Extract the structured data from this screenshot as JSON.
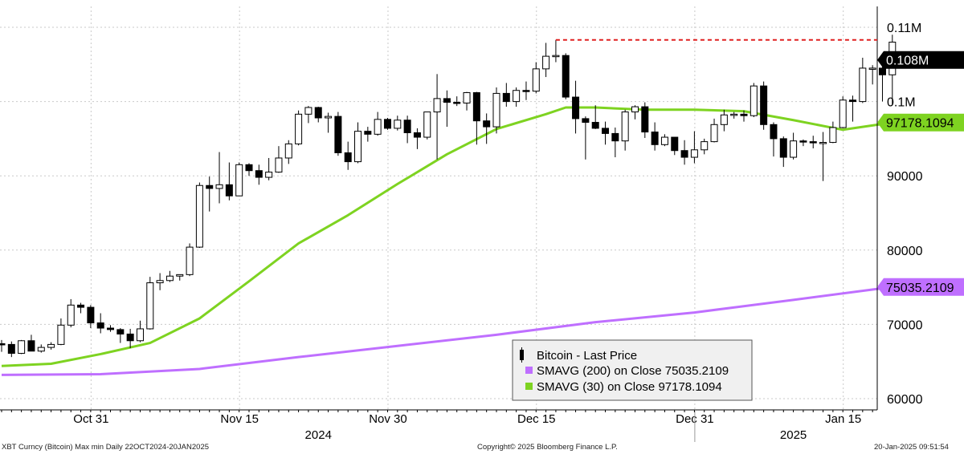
{
  "chart_data": {
    "type": "candlestick",
    "x_ticks": [
      "Oct 31",
      "Nov 15",
      "Nov 30",
      "Dec 15",
      "Dec 31",
      "Jan 15"
    ],
    "x_years": [
      "2024",
      "2025"
    ],
    "y_ticks": [
      "60000",
      "70000",
      "80000",
      "90000",
      "0.1M",
      "0.11M"
    ],
    "ylim": [
      59000,
      112000
    ],
    "grid": true,
    "legend_position": "bottom-center",
    "candles": [
      {
        "date": "2024-10-22",
        "o": 67400,
        "h": 67900,
        "l": 66300,
        "c": 67300
      },
      {
        "date": "2024-10-23",
        "o": 67300,
        "h": 67700,
        "l": 65600,
        "c": 66100
      },
      {
        "date": "2024-10-24",
        "o": 66100,
        "h": 67900,
        "l": 66000,
        "c": 67800
      },
      {
        "date": "2024-10-25",
        "o": 67800,
        "h": 68600,
        "l": 66500,
        "c": 66400
      },
      {
        "date": "2024-10-26",
        "o": 66400,
        "h": 67300,
        "l": 66200,
        "c": 66900
      },
      {
        "date": "2024-10-27",
        "o": 66900,
        "h": 67600,
        "l": 66600,
        "c": 67300
      },
      {
        "date": "2024-10-28",
        "o": 67300,
        "h": 70800,
        "l": 67200,
        "c": 69900
      },
      {
        "date": "2024-10-29",
        "o": 69900,
        "h": 73400,
        "l": 69600,
        "c": 72600
      },
      {
        "date": "2024-10-30",
        "o": 72600,
        "h": 72900,
        "l": 71500,
        "c": 72300
      },
      {
        "date": "2024-10-31",
        "o": 72300,
        "h": 72600,
        "l": 69500,
        "c": 70200
      },
      {
        "date": "2024-11-01",
        "o": 70200,
        "h": 71500,
        "l": 68800,
        "c": 69500
      },
      {
        "date": "2024-11-02",
        "o": 69500,
        "h": 69900,
        "l": 69000,
        "c": 69300
      },
      {
        "date": "2024-11-03",
        "o": 69300,
        "h": 69500,
        "l": 67500,
        "c": 68700
      },
      {
        "date": "2024-11-04",
        "o": 68700,
        "h": 69400,
        "l": 66800,
        "c": 67800
      },
      {
        "date": "2024-11-05",
        "o": 67800,
        "h": 70500,
        "l": 67600,
        "c": 69400
      },
      {
        "date": "2024-11-06",
        "o": 69400,
        "h": 76400,
        "l": 69300,
        "c": 75600
      },
      {
        "date": "2024-11-07",
        "o": 75600,
        "h": 76900,
        "l": 74600,
        "c": 75900
      },
      {
        "date": "2024-11-08",
        "o": 75900,
        "h": 77200,
        "l": 75700,
        "c": 76500
      },
      {
        "date": "2024-11-09",
        "o": 76500,
        "h": 76700,
        "l": 75900,
        "c": 76700
      },
      {
        "date": "2024-11-10",
        "o": 76700,
        "h": 80900,
        "l": 76500,
        "c": 80400
      },
      {
        "date": "2024-11-11",
        "o": 80400,
        "h": 89100,
        "l": 80300,
        "c": 88700
      },
      {
        "date": "2024-11-12",
        "o": 88700,
        "h": 89900,
        "l": 85200,
        "c": 88300
      },
      {
        "date": "2024-11-13",
        "o": 88300,
        "h": 93200,
        "l": 86300,
        "c": 88800
      },
      {
        "date": "2024-11-14",
        "o": 88800,
        "h": 91800,
        "l": 86700,
        "c": 87300
      },
      {
        "date": "2024-11-15",
        "o": 87300,
        "h": 91800,
        "l": 87300,
        "c": 91500
      },
      {
        "date": "2024-11-16",
        "o": 91500,
        "h": 91700,
        "l": 90000,
        "c": 90700
      },
      {
        "date": "2024-11-17",
        "o": 90700,
        "h": 91500,
        "l": 88800,
        "c": 89800
      },
      {
        "date": "2024-11-18",
        "o": 89800,
        "h": 92400,
        "l": 89400,
        "c": 90500
      },
      {
        "date": "2024-11-19",
        "o": 90500,
        "h": 94000,
        "l": 90400,
        "c": 92400
      },
      {
        "date": "2024-11-20",
        "o": 92400,
        "h": 94800,
        "l": 91600,
        "c": 94300
      },
      {
        "date": "2024-11-21",
        "o": 94300,
        "h": 98800,
        "l": 94100,
        "c": 98300
      },
      {
        "date": "2024-11-22",
        "o": 98300,
        "h": 99400,
        "l": 97100,
        "c": 99200
      },
      {
        "date": "2024-11-23",
        "o": 99200,
        "h": 99300,
        "l": 97200,
        "c": 97800
      },
      {
        "date": "2024-11-24",
        "o": 97800,
        "h": 98500,
        "l": 95800,
        "c": 98000
      },
      {
        "date": "2024-11-25",
        "o": 98000,
        "h": 98600,
        "l": 92700,
        "c": 93100
      },
      {
        "date": "2024-11-26",
        "o": 93100,
        "h": 94600,
        "l": 90800,
        "c": 91900
      },
      {
        "date": "2024-11-27",
        "o": 91900,
        "h": 97200,
        "l": 91700,
        "c": 96000
      },
      {
        "date": "2024-11-28",
        "o": 96000,
        "h": 96600,
        "l": 94600,
        "c": 95600
      },
      {
        "date": "2024-11-29",
        "o": 95600,
        "h": 98600,
        "l": 95400,
        "c": 97600
      },
      {
        "date": "2024-11-30",
        "o": 97600,
        "h": 97800,
        "l": 96200,
        "c": 96400
      },
      {
        "date": "2024-12-01",
        "o": 96400,
        "h": 98100,
        "l": 96100,
        "c": 97500
      },
      {
        "date": "2024-12-02",
        "o": 97500,
        "h": 98100,
        "l": 94400,
        "c": 95800
      },
      {
        "date": "2024-12-03",
        "o": 95800,
        "h": 96400,
        "l": 93600,
        "c": 95200
      },
      {
        "date": "2024-12-04",
        "o": 95200,
        "h": 98400,
        "l": 94900,
        "c": 98600
      },
      {
        "date": "2024-12-05",
        "o": 98600,
        "h": 103700,
        "l": 92200,
        "c": 100400
      },
      {
        "date": "2024-12-06",
        "o": 100400,
        "h": 101500,
        "l": 96600,
        "c": 99900
      },
      {
        "date": "2024-12-07",
        "o": 99900,
        "h": 100700,
        "l": 99400,
        "c": 99800
      },
      {
        "date": "2024-12-08",
        "o": 99800,
        "h": 101300,
        "l": 98800,
        "c": 101200
      },
      {
        "date": "2024-12-09",
        "o": 101200,
        "h": 101300,
        "l": 94200,
        "c": 97400
      },
      {
        "date": "2024-12-10",
        "o": 97400,
        "h": 98400,
        "l": 94300,
        "c": 96600
      },
      {
        "date": "2024-12-11",
        "o": 96600,
        "h": 101900,
        "l": 95700,
        "c": 101100
      },
      {
        "date": "2024-12-12",
        "o": 101100,
        "h": 102500,
        "l": 99300,
        "c": 100000
      },
      {
        "date": "2024-12-13",
        "o": 100000,
        "h": 101900,
        "l": 99300,
        "c": 101500
      },
      {
        "date": "2024-12-14",
        "o": 101500,
        "h": 102700,
        "l": 100200,
        "c": 101400
      },
      {
        "date": "2024-12-15",
        "o": 101400,
        "h": 105300,
        "l": 101100,
        "c": 104400
      },
      {
        "date": "2024-12-16",
        "o": 104400,
        "h": 107900,
        "l": 103300,
        "c": 106100
      },
      {
        "date": "2024-12-17",
        "o": 106100,
        "h": 108300,
        "l": 105300,
        "c": 106200
      },
      {
        "date": "2024-12-18",
        "o": 106200,
        "h": 106500,
        "l": 100300,
        "c": 100600
      },
      {
        "date": "2024-12-19",
        "o": 100600,
        "h": 102800,
        "l": 95700,
        "c": 97700
      },
      {
        "date": "2024-12-20",
        "o": 97700,
        "h": 98000,
        "l": 92200,
        "c": 97200
      },
      {
        "date": "2024-12-21",
        "o": 97200,
        "h": 99500,
        "l": 96300,
        "c": 96400
      },
      {
        "date": "2024-12-22",
        "o": 96400,
        "h": 97300,
        "l": 94200,
        "c": 95700
      },
      {
        "date": "2024-12-23",
        "o": 95700,
        "h": 96500,
        "l": 92500,
        "c": 94700
      },
      {
        "date": "2024-12-24",
        "o": 94700,
        "h": 98900,
        "l": 93400,
        "c": 98600
      },
      {
        "date": "2024-12-25",
        "o": 98600,
        "h": 99500,
        "l": 97600,
        "c": 99300
      },
      {
        "date": "2024-12-26",
        "o": 99300,
        "h": 99900,
        "l": 95100,
        "c": 95900
      },
      {
        "date": "2024-12-27",
        "o": 95900,
        "h": 97200,
        "l": 93400,
        "c": 94200
      },
      {
        "date": "2024-12-28",
        "o": 94200,
        "h": 95600,
        "l": 94000,
        "c": 95200
      },
      {
        "date": "2024-12-29",
        "o": 95200,
        "h": 95200,
        "l": 92800,
        "c": 93400
      },
      {
        "date": "2024-12-30",
        "o": 93400,
        "h": 94800,
        "l": 91500,
        "c": 92500
      },
      {
        "date": "2024-12-31",
        "o": 92500,
        "h": 96000,
        "l": 91700,
        "c": 93500
      },
      {
        "date": "2025-01-01",
        "o": 93500,
        "h": 95000,
        "l": 92900,
        "c": 94600
      },
      {
        "date": "2025-01-02",
        "o": 94600,
        "h": 97700,
        "l": 94500,
        "c": 96900
      },
      {
        "date": "2025-01-03",
        "o": 96900,
        "h": 98900,
        "l": 96000,
        "c": 98200
      },
      {
        "date": "2025-01-04",
        "o": 98200,
        "h": 98600,
        "l": 97700,
        "c": 98300
      },
      {
        "date": "2025-01-05",
        "o": 98300,
        "h": 98800,
        "l": 97300,
        "c": 98100
      },
      {
        "date": "2025-01-06",
        "o": 98100,
        "h": 102500,
        "l": 97900,
        "c": 102100
      },
      {
        "date": "2025-01-07",
        "o": 102100,
        "h": 102700,
        "l": 96200,
        "c": 96900
      },
      {
        "date": "2025-01-08",
        "o": 96900,
        "h": 97200,
        "l": 92600,
        "c": 95000
      },
      {
        "date": "2025-01-09",
        "o": 95000,
        "h": 95300,
        "l": 91200,
        "c": 92500
      },
      {
        "date": "2025-01-10",
        "o": 92500,
        "h": 95800,
        "l": 92200,
        "c": 94700
      },
      {
        "date": "2025-01-11",
        "o": 94700,
        "h": 94900,
        "l": 94000,
        "c": 94600
      },
      {
        "date": "2025-01-12",
        "o": 94600,
        "h": 95400,
        "l": 93700,
        "c": 94500
      },
      {
        "date": "2025-01-13",
        "o": 94500,
        "h": 95900,
        "l": 89300,
        "c": 94500
      },
      {
        "date": "2025-01-14",
        "o": 94500,
        "h": 97300,
        "l": 94400,
        "c": 96500
      },
      {
        "date": "2025-01-15",
        "o": 96500,
        "h": 100700,
        "l": 96400,
        "c": 100200
      },
      {
        "date": "2025-01-16",
        "o": 100200,
        "h": 100800,
        "l": 97300,
        "c": 100000
      },
      {
        "date": "2025-01-17",
        "o": 100000,
        "h": 105900,
        "l": 99800,
        "c": 104500
      },
      {
        "date": "2025-01-18",
        "o": 104500,
        "h": 104900,
        "l": 102300,
        "c": 104500
      },
      {
        "date": "2025-01-19",
        "o": 104500,
        "h": 106300,
        "l": 100000,
        "c": 103600
      },
      {
        "date": "2025-01-20",
        "o": 103600,
        "h": 109000,
        "l": 99600,
        "c": 108000
      }
    ],
    "series": [
      {
        "name": "SMAVG (200)  on Close",
        "last": "75035.2109",
        "color": "#bf6fff",
        "x": [
          "2024-10-22",
          "2024-11-01",
          "2024-11-11",
          "2024-11-21",
          "2024-12-01",
          "2024-12-11",
          "2024-12-21",
          "2024-12-31",
          "2025-01-10",
          "2025-01-20"
        ],
        "values": [
          63200,
          63300,
          64000,
          65600,
          67100,
          68600,
          70300,
          71600,
          73300,
          75035
        ]
      },
      {
        "name": "SMAVG (30)  on Close",
        "last": "97178.1094",
        "color": "#7ed321",
        "x": [
          "2024-10-22",
          "2024-10-27",
          "2024-11-01",
          "2024-11-06",
          "2024-11-11",
          "2024-11-16",
          "2024-11-21",
          "2024-11-26",
          "2024-12-01",
          "2024-12-06",
          "2024-12-11",
          "2024-12-16",
          "2024-12-18",
          "2024-12-21",
          "2024-12-26",
          "2024-12-31",
          "2025-01-05",
          "2025-01-10",
          "2025-01-15",
          "2025-01-20"
        ],
        "values": [
          64400,
          64700,
          66000,
          67500,
          70800,
          75800,
          80900,
          84700,
          88900,
          92900,
          96300,
          98300,
          99200,
          99200,
          98900,
          98900,
          98700,
          97500,
          96200,
          97178
        ]
      }
    ],
    "last_price_label": "0.108M",
    "legend": {
      "items": [
        {
          "text": "Bitcoin  - Last Price",
          "symbol": "candle"
        },
        {
          "text": "SMAVG (200)  on Close 75035.2109",
          "symbol": "purple"
        },
        {
          "text": "SMAVG (30)  on Close   97178.1094",
          "symbol": "green"
        }
      ]
    }
  },
  "footer": {
    "left": "XBT Curncy (Bitcoin) Max min  Daily 22OCT2024-20JAN2025",
    "center": "Copyright© 2025 Bloomberg Finance L.P.",
    "right": "20-Jan-2025 09:51:54"
  },
  "colors": {
    "up_candle": "#ffffff",
    "down_candle": "#000000",
    "grid": "#c9c9c9",
    "last_line": "#e02020"
  }
}
